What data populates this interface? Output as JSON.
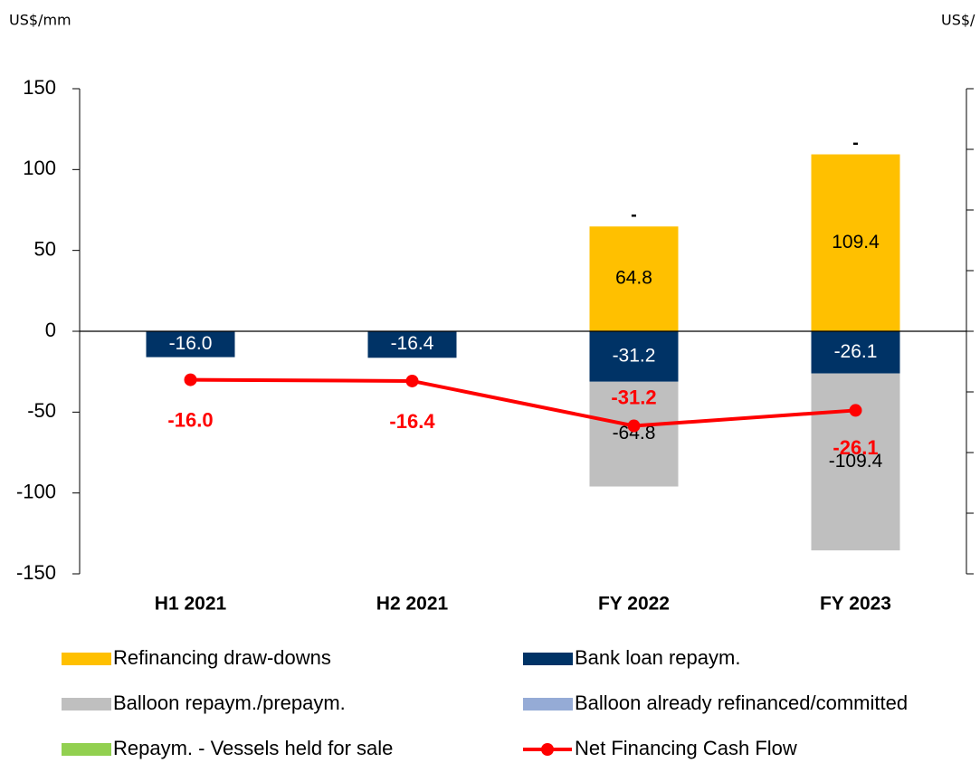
{
  "chart_data": {
    "type": "bar",
    "stacked": true,
    "y_label": "US$/mm",
    "y2_label": "US$/",
    "categories": [
      "H1 2021",
      "H2 2021",
      "FY 2022",
      "FY 2023"
    ],
    "ylim": [
      -150,
      150
    ],
    "yticks": [
      -150,
      -100,
      -50,
      0,
      50,
      100,
      150
    ],
    "y2lim": [
      -80,
      80
    ],
    "y2ticks": [
      -80,
      -60,
      -40,
      -20,
      0,
      20,
      40,
      60,
      80
    ],
    "series": [
      {
        "name": "Refinancing draw-downs",
        "color": "#ffc000",
        "values": [
          null,
          null,
          64.8,
          109.4
        ],
        "value_labels": [
          null,
          null,
          "64.8",
          "109.4"
        ]
      },
      {
        "name": "Bank loan repaym.",
        "color": "#003366",
        "values": [
          -16.0,
          -16.4,
          -31.2,
          -26.1
        ],
        "value_labels": [
          "-16.0",
          "-16.4",
          "-31.2",
          "-26.1"
        ]
      },
      {
        "name": "Balloon repaym./prepaym.",
        "color": "#bfbfbf",
        "values": [
          null,
          null,
          -64.8,
          -109.4
        ],
        "value_labels": [
          null,
          null,
          "-64.8",
          "-109.4"
        ]
      },
      {
        "name": "Balloon already refinanced/committed",
        "color": "#95abd6",
        "values": [
          null,
          null,
          0,
          0
        ],
        "value_labels": [
          null,
          null,
          "-",
          "-"
        ]
      },
      {
        "name": "Repaym. - Vessels held for sale",
        "color": "#92d050",
        "values": [
          null,
          null,
          null,
          null
        ]
      },
      {
        "name": "Net Financing Cash Flow",
        "color": "#ff0000",
        "type": "line",
        "axis": "y2",
        "values": [
          -16.0,
          -16.4,
          -31.2,
          -26.1
        ],
        "value_labels": [
          "-16.0",
          "-16.4",
          "-31.2",
          "-26.1"
        ]
      }
    ]
  }
}
